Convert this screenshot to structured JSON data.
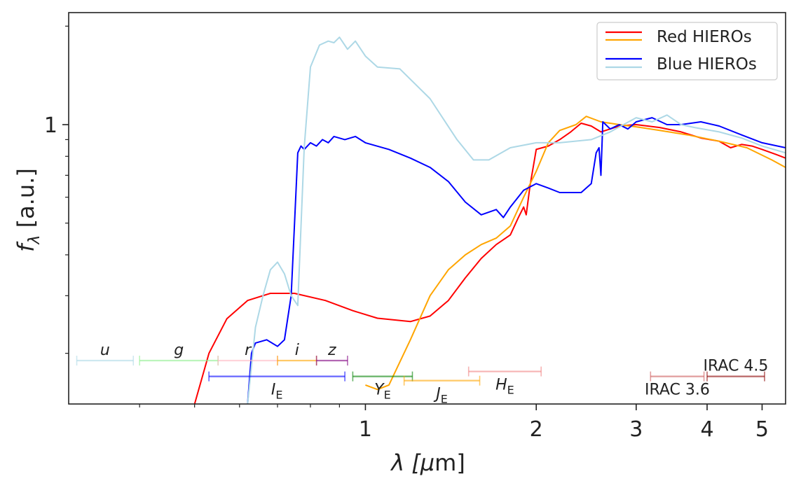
{
  "chart_data": {
    "type": "line",
    "title": "",
    "xlabel": {
      "main": "λ [",
      "mu": "μ",
      "rest": "m]"
    },
    "ylabel": {
      "f": "f",
      "sub": "λ",
      "rest": " [a.u.]"
    },
    "xscale": "log",
    "yscale": "log",
    "xlim": [
      0.3,
      5.5
    ],
    "ylim": [
      0.14,
      2.2
    ],
    "xticks": [
      {
        "value": 1,
        "label": "1"
      },
      {
        "value": 2,
        "label": "2"
      },
      {
        "value": 3,
        "label": "3"
      },
      {
        "value": 4,
        "label": "4"
      },
      {
        "value": 5,
        "label": "5"
      }
    ],
    "yticks": [
      {
        "value": 1,
        "label": "1"
      }
    ],
    "legend": {
      "placement": "top-right",
      "entries": [
        {
          "label": "Red HIEROs",
          "colors": [
            "#ff0000",
            "#ffa500"
          ]
        },
        {
          "label": "Blue HIEROs",
          "colors": [
            "#0000ff",
            "#add8e6"
          ]
        }
      ]
    },
    "series": [
      {
        "name": "Red HIEROs (red)",
        "color": "#ff0000",
        "points": [
          [
            0.5,
            0.14
          ],
          [
            0.53,
            0.2
          ],
          [
            0.57,
            0.255
          ],
          [
            0.62,
            0.29
          ],
          [
            0.68,
            0.305
          ],
          [
            0.75,
            0.305
          ],
          [
            0.85,
            0.29
          ],
          [
            0.95,
            0.27
          ],
          [
            1.05,
            0.256
          ],
          [
            1.2,
            0.25
          ],
          [
            1.3,
            0.26
          ],
          [
            1.4,
            0.29
          ],
          [
            1.5,
            0.34
          ],
          [
            1.6,
            0.39
          ],
          [
            1.7,
            0.43
          ],
          [
            1.8,
            0.46
          ],
          [
            1.86,
            0.52
          ],
          [
            1.9,
            0.56
          ],
          [
            1.92,
            0.53
          ],
          [
            1.95,
            0.65
          ],
          [
            2.0,
            0.84
          ],
          [
            2.1,
            0.86
          ],
          [
            2.2,
            0.9
          ],
          [
            2.3,
            0.95
          ],
          [
            2.4,
            1.01
          ],
          [
            2.5,
            0.99
          ],
          [
            2.6,
            0.95
          ],
          [
            2.8,
            0.99
          ],
          [
            3.0,
            1.0
          ],
          [
            3.3,
            0.98
          ],
          [
            3.6,
            0.95
          ],
          [
            3.9,
            0.91
          ],
          [
            4.2,
            0.89
          ],
          [
            4.4,
            0.85
          ],
          [
            4.6,
            0.87
          ],
          [
            4.8,
            0.86
          ],
          [
            5.0,
            0.84
          ],
          [
            5.3,
            0.81
          ],
          [
            5.5,
            0.79
          ]
        ]
      },
      {
        "name": "Red HIEROs (orange)",
        "color": "#ffa500",
        "points": [
          [
            1.0,
            0.16
          ],
          [
            1.05,
            0.155
          ],
          [
            1.1,
            0.16
          ],
          [
            1.2,
            0.22
          ],
          [
            1.3,
            0.3
          ],
          [
            1.4,
            0.36
          ],
          [
            1.5,
            0.4
          ],
          [
            1.6,
            0.43
          ],
          [
            1.7,
            0.45
          ],
          [
            1.8,
            0.49
          ],
          [
            1.9,
            0.6
          ],
          [
            2.0,
            0.72
          ],
          [
            2.1,
            0.88
          ],
          [
            2.2,
            0.96
          ],
          [
            2.35,
            1.0
          ],
          [
            2.45,
            1.06
          ],
          [
            2.6,
            1.02
          ],
          [
            2.8,
            1.0
          ],
          [
            3.0,
            0.985
          ],
          [
            3.3,
            0.96
          ],
          [
            3.7,
            0.93
          ],
          [
            4.2,
            0.89
          ],
          [
            4.7,
            0.85
          ],
          [
            5.2,
            0.78
          ],
          [
            5.5,
            0.74
          ]
        ]
      },
      {
        "name": "Blue HIEROs (blue)",
        "color": "#0000ff",
        "points": [
          [
            0.62,
            0.14
          ],
          [
            0.63,
            0.2
          ],
          [
            0.64,
            0.215
          ],
          [
            0.67,
            0.22
          ],
          [
            0.7,
            0.21
          ],
          [
            0.72,
            0.22
          ],
          [
            0.74,
            0.3
          ],
          [
            0.75,
            0.5
          ],
          [
            0.76,
            0.82
          ],
          [
            0.77,
            0.86
          ],
          [
            0.78,
            0.84
          ],
          [
            0.8,
            0.88
          ],
          [
            0.82,
            0.86
          ],
          [
            0.84,
            0.9
          ],
          [
            0.86,
            0.88
          ],
          [
            0.88,
            0.92
          ],
          [
            0.92,
            0.9
          ],
          [
            0.96,
            0.92
          ],
          [
            1.0,
            0.88
          ],
          [
            1.1,
            0.84
          ],
          [
            1.2,
            0.79
          ],
          [
            1.3,
            0.74
          ],
          [
            1.4,
            0.67
          ],
          [
            1.5,
            0.58
          ],
          [
            1.6,
            0.53
          ],
          [
            1.7,
            0.55
          ],
          [
            1.75,
            0.52
          ],
          [
            1.8,
            0.56
          ],
          [
            1.9,
            0.63
          ],
          [
            2.0,
            0.66
          ],
          [
            2.1,
            0.64
          ],
          [
            2.2,
            0.62
          ],
          [
            2.4,
            0.62
          ],
          [
            2.5,
            0.66
          ],
          [
            2.55,
            0.82
          ],
          [
            2.58,
            0.85
          ],
          [
            2.6,
            0.7
          ],
          [
            2.62,
            1.02
          ],
          [
            2.7,
            0.97
          ],
          [
            2.8,
            1.0
          ],
          [
            2.9,
            0.97
          ],
          [
            3.0,
            1.02
          ],
          [
            3.2,
            1.05
          ],
          [
            3.4,
            1.0
          ],
          [
            3.6,
            1.0
          ],
          [
            3.9,
            1.02
          ],
          [
            4.2,
            0.99
          ],
          [
            4.6,
            0.93
          ],
          [
            5.0,
            0.88
          ],
          [
            5.5,
            0.85
          ]
        ]
      },
      {
        "name": "Blue HIEROs (light blue)",
        "color": "#add8e6",
        "points": [
          [
            0.62,
            0.14
          ],
          [
            0.64,
            0.24
          ],
          [
            0.66,
            0.3
          ],
          [
            0.68,
            0.36
          ],
          [
            0.7,
            0.38
          ],
          [
            0.72,
            0.35
          ],
          [
            0.74,
            0.3
          ],
          [
            0.76,
            0.28
          ],
          [
            0.78,
            0.85
          ],
          [
            0.8,
            1.5
          ],
          [
            0.83,
            1.75
          ],
          [
            0.86,
            1.8
          ],
          [
            0.88,
            1.78
          ],
          [
            0.9,
            1.85
          ],
          [
            0.93,
            1.7
          ],
          [
            0.96,
            1.8
          ],
          [
            1.0,
            1.62
          ],
          [
            1.05,
            1.5
          ],
          [
            1.15,
            1.48
          ],
          [
            1.3,
            1.2
          ],
          [
            1.45,
            0.9
          ],
          [
            1.55,
            0.78
          ],
          [
            1.65,
            0.78
          ],
          [
            1.8,
            0.85
          ],
          [
            2.0,
            0.88
          ],
          [
            2.2,
            0.88
          ],
          [
            2.5,
            0.9
          ],
          [
            2.7,
            0.95
          ],
          [
            3.0,
            1.05
          ],
          [
            3.2,
            1.02
          ],
          [
            3.4,
            1.07
          ],
          [
            3.6,
            1.0
          ],
          [
            3.8,
            0.98
          ],
          [
            4.2,
            0.95
          ],
          [
            4.6,
            0.91
          ],
          [
            5.0,
            0.86
          ],
          [
            5.5,
            0.82
          ]
        ]
      }
    ],
    "filters": [
      {
        "name": "u",
        "italic": true,
        "sub": "",
        "range": [
          0.31,
          0.39
        ],
        "y": 0.19,
        "color": "#add8e6",
        "label_pos": "above"
      },
      {
        "name": "g",
        "italic": true,
        "sub": "",
        "range": [
          0.4,
          0.55
        ],
        "y": 0.19,
        "color": "#90ee90",
        "label_pos": "above"
      },
      {
        "name": "r",
        "italic": true,
        "sub": "",
        "range": [
          0.55,
          0.7
        ],
        "y": 0.19,
        "color": "#ffb6c1",
        "label_pos": "above"
      },
      {
        "name": "i",
        "italic": true,
        "sub": "",
        "range": [
          0.7,
          0.82
        ],
        "y": 0.19,
        "color": "#ffa500",
        "label_pos": "above"
      },
      {
        "name": "z",
        "italic": true,
        "sub": "",
        "range": [
          0.82,
          0.93
        ],
        "y": 0.19,
        "color": "#800080",
        "label_pos": "above"
      },
      {
        "name": "I",
        "italic": true,
        "sub": "E",
        "range": [
          0.53,
          0.92
        ],
        "y": 0.17,
        "color": "#0000ff",
        "label_pos": "below"
      },
      {
        "name": "Y",
        "italic": true,
        "sub": "E",
        "range": [
          0.95,
          1.21
        ],
        "y": 0.17,
        "color": "#008000",
        "label_pos": "below"
      },
      {
        "name": "J",
        "italic": true,
        "sub": "E",
        "range": [
          1.17,
          1.59
        ],
        "y": 0.165,
        "color": "#ffa500",
        "label_pos": "below"
      },
      {
        "name": "H",
        "italic": true,
        "sub": "E",
        "range": [
          1.52,
          2.04
        ],
        "y": 0.176,
        "color": "#f08080",
        "label_pos": "below"
      },
      {
        "name": "IRAC 3.6",
        "italic": false,
        "sub": "",
        "range": [
          3.18,
          3.95
        ],
        "y": 0.17,
        "color": "#cd5c5c",
        "label_pos": "below"
      },
      {
        "name": "IRAC 4.5",
        "italic": false,
        "sub": "",
        "range": [
          4.0,
          5.05
        ],
        "y": 0.17,
        "color": "#8b0000",
        "label_pos": "above"
      }
    ]
  }
}
